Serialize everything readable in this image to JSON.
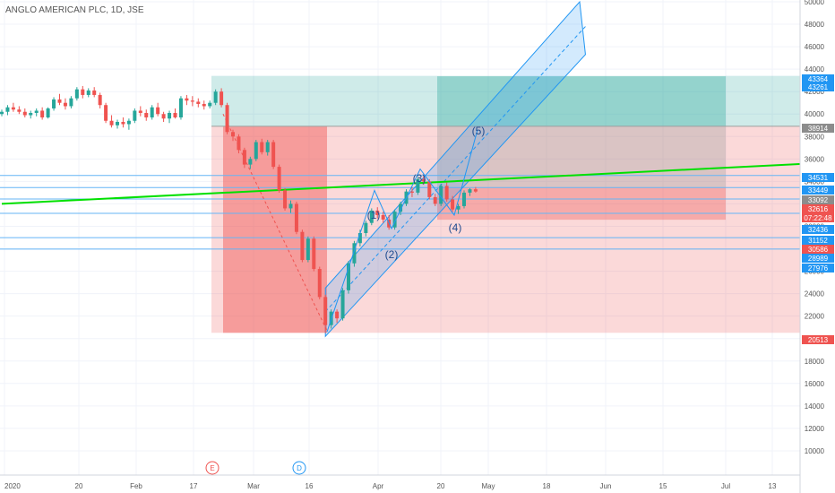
{
  "symbol_title": "ANGLO AMERICAN PLC, 1D, JSE",
  "colors": {
    "up": "#26a69a",
    "down": "#ef5350",
    "grid": "#f0f3fa",
    "hline": "#64b5f6",
    "trendline": "#00e000",
    "target_zone": "#26a69a",
    "stop_zone": "#ef5350",
    "channel": "#2196f3"
  },
  "chart_data": {
    "type": "candlestick",
    "title": "ANGLO AMERICAN PLC, 1D, JSE",
    "x_axis": {
      "ticks": [
        "2020",
        "20",
        "Feb",
        "17",
        "Mar",
        "16",
        "Apr",
        "20",
        "May",
        "18",
        "Jun",
        "15",
        "Jul",
        "13"
      ]
    },
    "y_axis": {
      "range": [
        8000,
        50000
      ],
      "ticks": [
        10000,
        12000,
        14000,
        16000,
        18000,
        20000,
        22000,
        24000,
        26000,
        28000,
        30000,
        32000,
        34000,
        36000,
        38000,
        40000,
        42000,
        44000,
        46000,
        48000,
        50000
      ]
    },
    "price_labels": [
      {
        "value": "43364",
        "style": "blue"
      },
      {
        "value": "43261",
        "style": "blue"
      },
      {
        "value": "38914",
        "style": "gray"
      },
      {
        "value": "34531",
        "style": "blue"
      },
      {
        "value": "33449",
        "style": "blue"
      },
      {
        "value": "33092",
        "style": "gray"
      },
      {
        "value": "32616",
        "style": "red"
      },
      {
        "value": "07:22:48",
        "style": "red"
      },
      {
        "value": "32436",
        "style": "blue"
      },
      {
        "value": "31152",
        "style": "blue"
      },
      {
        "value": "30586",
        "style": "red"
      },
      {
        "value": "28989",
        "style": "blue"
      },
      {
        "value": "27976",
        "style": "blue"
      },
      {
        "value": "20513",
        "style": "red"
      }
    ],
    "horizontal_lines": [
      34531,
      33449,
      32436,
      31152,
      28989,
      27976
    ],
    "wave_labels": [
      {
        "label": "(1)",
        "value": 33500
      },
      {
        "label": "(2)",
        "value": 29500
      },
      {
        "label": "(3)",
        "value": 35000
      },
      {
        "label": "(4)",
        "value": 30500
      },
      {
        "label": "(5)",
        "value": 38800
      }
    ],
    "event_markers": [
      "E",
      "D"
    ],
    "candles": [
      [
        40000,
        40400,
        39800,
        40200
      ],
      [
        40200,
        40800,
        39900,
        40600
      ],
      [
        40600,
        41000,
        40200,
        40400
      ],
      [
        40400,
        40700,
        40000,
        40200
      ],
      [
        40200,
        40500,
        39700,
        39900
      ],
      [
        39900,
        40300,
        39600,
        40100
      ],
      [
        40100,
        40500,
        39800,
        40300
      ],
      [
        40300,
        40600,
        39500,
        39700
      ],
      [
        39700,
        40600,
        39600,
        40500
      ],
      [
        40500,
        41500,
        40300,
        41300
      ],
      [
        41300,
        41800,
        40800,
        41000
      ],
      [
        41000,
        41400,
        40400,
        40700
      ],
      [
        40700,
        41600,
        40500,
        41400
      ],
      [
        41400,
        42400,
        41200,
        42200
      ],
      [
        42200,
        42500,
        41400,
        41700
      ],
      [
        41700,
        42300,
        41500,
        42100
      ],
      [
        42100,
        42400,
        41500,
        41700
      ],
      [
        41700,
        41900,
        40500,
        40800
      ],
      [
        40800,
        41000,
        39200,
        39400
      ],
      [
        39400,
        39900,
        38800,
        39000
      ],
      [
        39000,
        39500,
        38700,
        39300
      ],
      [
        39300,
        39700,
        38800,
        39100
      ],
      [
        39100,
        39600,
        38600,
        39400
      ],
      [
        39400,
        40500,
        39200,
        40300
      ],
      [
        40300,
        40700,
        39800,
        40100
      ],
      [
        40100,
        40400,
        39400,
        39700
      ],
      [
        39700,
        40800,
        39500,
        40600
      ],
      [
        40600,
        41000,
        39800,
        40000
      ],
      [
        40000,
        40200,
        39300,
        39600
      ],
      [
        39600,
        40300,
        39200,
        40100
      ],
      [
        40100,
        40500,
        39600,
        39700
      ],
      [
        39700,
        41600,
        39500,
        41400
      ],
      [
        41400,
        41700,
        40800,
        41200
      ],
      [
        41200,
        41600,
        40700,
        41100
      ],
      [
        41100,
        41400,
        40600,
        40900
      ],
      [
        40900,
        41200,
        40400,
        40700
      ],
      [
        40700,
        41200,
        40500,
        41000
      ],
      [
        41000,
        42200,
        40800,
        42000
      ],
      [
        42000,
        42300,
        40600,
        40800
      ],
      [
        40800,
        41000,
        38200,
        38400
      ],
      [
        38400,
        38600,
        37600,
        38000
      ],
      [
        38000,
        38200,
        36500,
        36800
      ],
      [
        36800,
        37000,
        35200,
        35500
      ],
      [
        35500,
        36200,
        35100,
        36000
      ],
      [
        36000,
        37700,
        35800,
        37500
      ],
      [
        37500,
        37800,
        36400,
        36600
      ],
      [
        36600,
        37700,
        36300,
        37500
      ],
      [
        37500,
        37700,
        35100,
        35300
      ],
      [
        35300,
        35500,
        33000,
        33200
      ],
      [
        33200,
        33400,
        31400,
        31600
      ],
      [
        31600,
        32300,
        31200,
        32000
      ],
      [
        32000,
        32200,
        29300,
        29500
      ],
      [
        29500,
        29700,
        26800,
        27000
      ],
      [
        27000,
        29100,
        26800,
        28900
      ],
      [
        28900,
        29100,
        26000,
        26200
      ],
      [
        26200,
        26400,
        23500,
        23700
      ],
      [
        23700,
        23900,
        20500,
        21200
      ],
      [
        21200,
        22600,
        20900,
        22400
      ],
      [
        22400,
        22600,
        21400,
        21800
      ],
      [
        21800,
        24500,
        21600,
        24300
      ],
      [
        24300,
        26900,
        24000,
        26700
      ],
      [
        26700,
        28700,
        26400,
        28500
      ],
      [
        28500,
        29700,
        28200,
        29400
      ],
      [
        29400,
        30500,
        29100,
        30300
      ],
      [
        30300,
        31600,
        30100,
        31400
      ],
      [
        31400,
        31700,
        30700,
        31000
      ],
      [
        31000,
        31300,
        30300,
        30600
      ],
      [
        30600,
        31000,
        29700,
        29900
      ],
      [
        29900,
        31500,
        29700,
        31300
      ],
      [
        31300,
        32200,
        31000,
        32000
      ],
      [
        32000,
        33300,
        31800,
        33100
      ],
      [
        33100,
        33500,
        32600,
        33000
      ],
      [
        33000,
        34400,
        32800,
        34200
      ],
      [
        34200,
        34500,
        33700,
        34000
      ],
      [
        34000,
        34200,
        32400,
        32600
      ],
      [
        32600,
        32900,
        31800,
        32000
      ],
      [
        32000,
        33800,
        31800,
        33600
      ],
      [
        33600,
        33900,
        32200,
        32400
      ],
      [
        32400,
        32700,
        31300,
        31500
      ],
      [
        31500,
        32000,
        31100,
        31800
      ],
      [
        31800,
        33200,
        31600,
        33000
      ],
      [
        33000,
        33400,
        32700,
        33300
      ],
      [
        33300,
        33500,
        33000,
        33100
      ]
    ],
    "trend_channel_top": [
      [
        56,
        24500
      ],
      [
        100,
        50000
      ]
    ],
    "trend_channel_bottom": [
      [
        56,
        20200
      ],
      [
        101,
        45300
      ]
    ],
    "trend_channel_mid": [
      [
        56,
        22400
      ],
      [
        101,
        47800
      ]
    ],
    "zones": {
      "long_target_1": [
        42800,
        43400
      ],
      "long_stop_1": [
        20500,
        38914
      ],
      "long_target_2": [
        33449,
        43364
      ],
      "long_stop_2": [
        30586,
        33449
      ]
    },
    "green_trendline": [
      [
        0,
        32000
      ],
      [
        140,
        35600
      ]
    ]
  }
}
